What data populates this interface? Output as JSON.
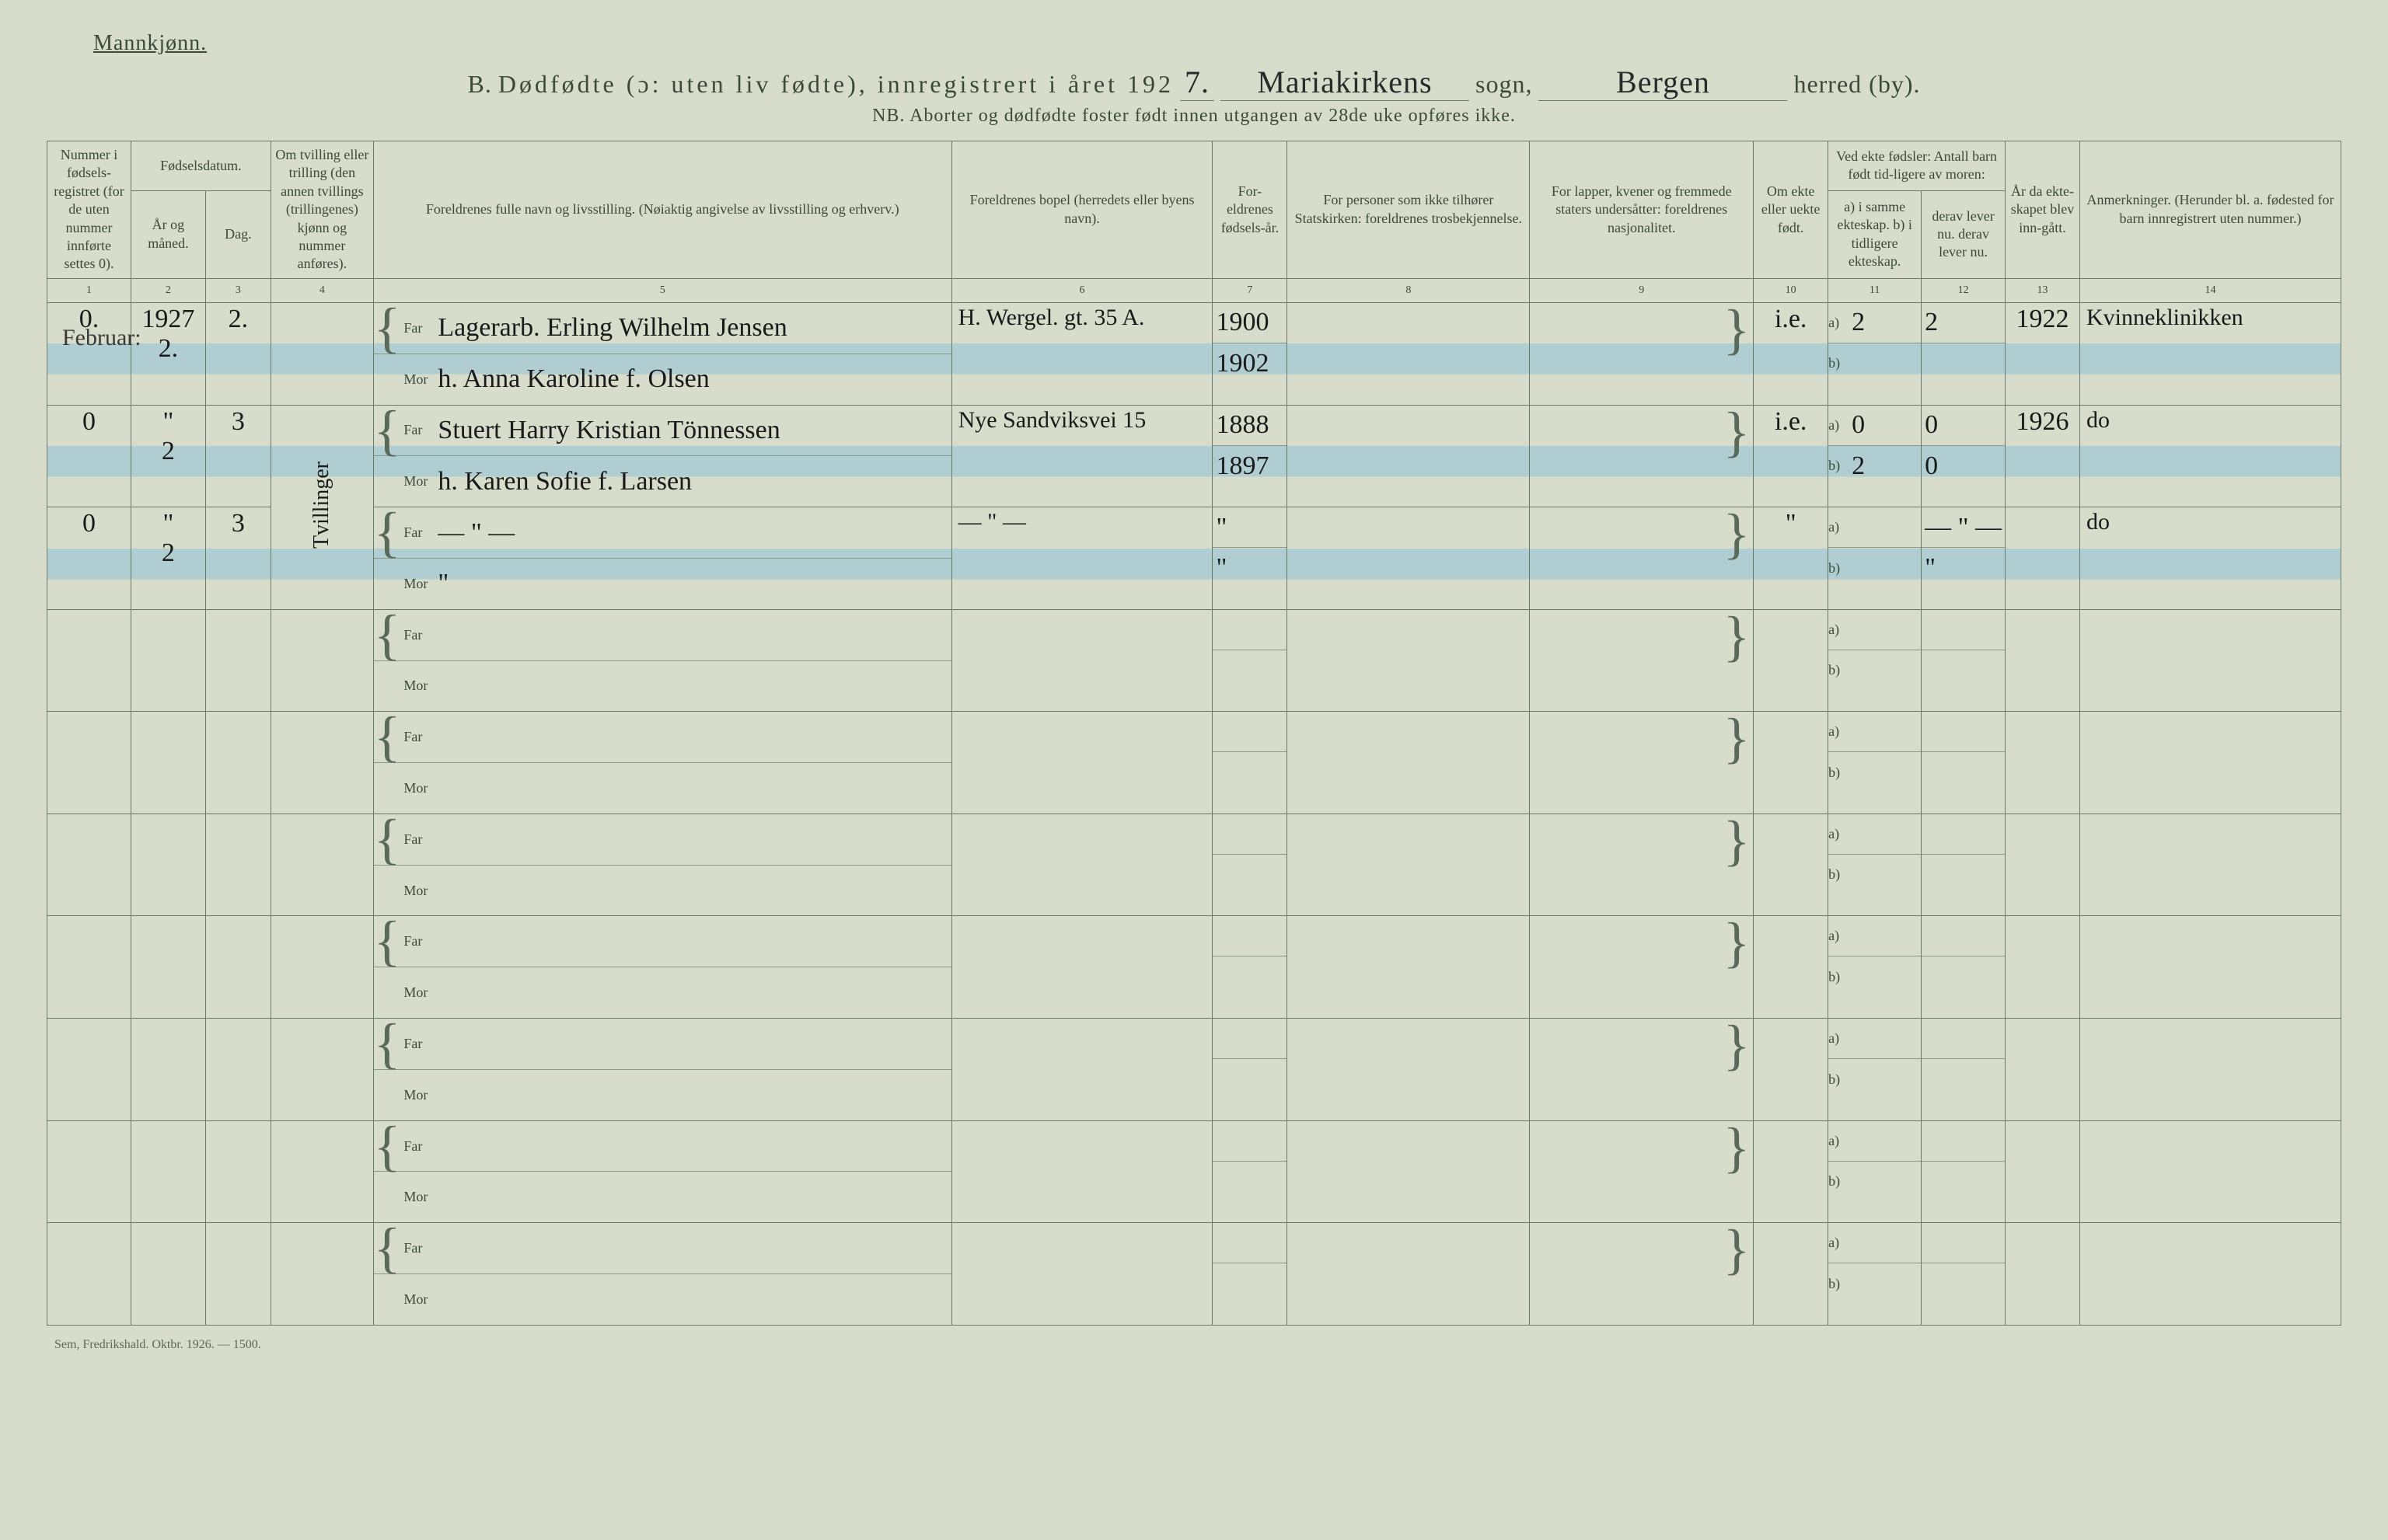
{
  "header": {
    "gender": "Mannkjønn.",
    "prefix": "B.",
    "title": "Dødfødte (ɔ: uten liv fødte), innregistrert i året 192",
    "year_suffix": "7.",
    "sogn_value": "Mariakirkens",
    "sogn_label": "sogn,",
    "herred_value": "Bergen",
    "herred_label": "herred (by).",
    "subtitle": "NB.  Aborter og dødfødte foster født innen utgangen av 28de uke opføres ikke."
  },
  "columns": {
    "c1": "Nummer i fødsels-registret (for de uten nummer innførte settes 0).",
    "c2_group": "Fødselsdatum.",
    "c2": "År og måned.",
    "c3": "Dag.",
    "c4": "Om tvilling eller trilling (den annen tvillings (trillingenes) kjønn og nummer anføres).",
    "c5": "Foreldrenes fulle navn og livsstilling. (Nøiaktig angivelse av livsstilling og erhverv.)",
    "c6": "Foreldrenes bopel (herredets eller byens navn).",
    "c7": "For-eldrenes fødsels-år.",
    "c8": "For personer som ikke tilhører Statskirken: foreldrenes trosbekjennelse.",
    "c9": "For lapper, kvener og fremmede staters undersåtter: foreldrenes nasjonalitet.",
    "c10": "Om ekte eller uekte født.",
    "c11_group": "Ved ekte fødsler: Antall barn født tid-ligere av moren:",
    "c11": "a) i samme ekteskap. b) i tidligere ekteskap.",
    "c12": "derav lever nu. derav lever nu.",
    "c13": "År da ekte-skapet blev inn-gått.",
    "c14": "Anmerkninger. (Herunder bl. a. fødested for barn innregistrert uten nummer.)",
    "nums": [
      "1",
      "2",
      "3",
      "4",
      "5",
      "6",
      "7",
      "8",
      "9",
      "10",
      "11",
      "12",
      "13",
      "14"
    ]
  },
  "role_labels": {
    "far": "Far",
    "mor": "Mor",
    "a": "a)",
    "b": "b)"
  },
  "margin": {
    "month": "Februar:"
  },
  "rows": [
    {
      "num": "0.",
      "year": "1927",
      "month_day": "2.",
      "day": "2.",
      "twin": "",
      "far": "Lagerarb. Erling Wilhelm Jensen",
      "mor": "h. Anna Karoline f. Olsen",
      "bopel": "H. Wergel. gt. 35 A.",
      "far_year": "1900",
      "mor_year": "1902",
      "ekte": "i.e.",
      "a_same": "2",
      "a_lever": "2",
      "b_same": "",
      "b_lever": "",
      "ekteskap_aar": "1922",
      "anm": "Kvinneklinikken",
      "hl": true
    },
    {
      "num": "0",
      "year": "\"",
      "month_day": "2",
      "day": "3",
      "twin": "",
      "far": "Stuert Harry Kristian Tönnessen",
      "mor": "h. Karen Sofie f. Larsen",
      "bopel": "Nye Sandviksvei 15",
      "far_year": "1888",
      "mor_year": "1897",
      "ekte": "i.e.",
      "a_same": "0",
      "a_lever": "0",
      "b_same": "2",
      "b_lever": "0",
      "ekteskap_aar": "1926",
      "anm": "do",
      "hl": true,
      "twin_span_start": true
    },
    {
      "num": "0",
      "year": "\"",
      "month_day": "2",
      "day": "3",
      "twin": "",
      "far": "— \" —",
      "mor": "\"",
      "bopel": "— \" —",
      "far_year": "\"",
      "mor_year": "\"",
      "ekte": "\"",
      "a_same": "",
      "a_lever": "— \" —",
      "b_same": "",
      "b_lever": "\"",
      "ekteskap_aar": "",
      "anm": "do",
      "hl": true
    },
    {
      "empty": true
    },
    {
      "empty": true
    },
    {
      "empty": true
    },
    {
      "empty": true
    },
    {
      "empty": true
    },
    {
      "empty": true
    },
    {
      "empty": true
    }
  ],
  "twin_vertical": "Tvillinger",
  "footer": "Sem, Fredrikshald.  Oktbr. 1926. — 1500."
}
